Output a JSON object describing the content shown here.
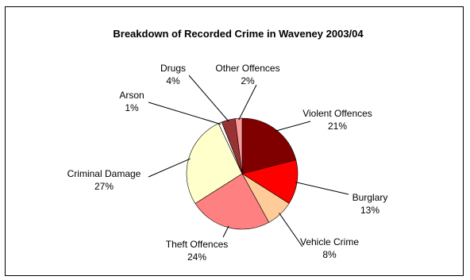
{
  "chart_data": {
    "type": "pie",
    "title": "Breakdown of Recorded Crime in Waveney 2003/04",
    "start_angle_deg": 0,
    "direction": "clockwise",
    "slices": [
      {
        "label": "Violent Offences",
        "value": 21,
        "display": "21%",
        "color": "#800000"
      },
      {
        "label": "Burglary",
        "value": 13,
        "display": "13%",
        "color": "#ff0000"
      },
      {
        "label": "Vehicle Crime",
        "value": 8,
        "display": "8%",
        "color": "#ffcc99"
      },
      {
        "label": "Theft Offences",
        "value": 24,
        "display": "24%",
        "color": "#ff8080"
      },
      {
        "label": "Criminal Damage",
        "value": 27,
        "display": "27%",
        "color": "#ffffcc"
      },
      {
        "label": "Arson",
        "value": 1,
        "display": "1%",
        "color": "#ffffff"
      },
      {
        "label": "Drugs",
        "value": 4,
        "display": "4%",
        "color": "#993333"
      },
      {
        "label": "Other Offences",
        "value": 2,
        "display": "2%",
        "color": "#ff9999"
      }
    ]
  }
}
